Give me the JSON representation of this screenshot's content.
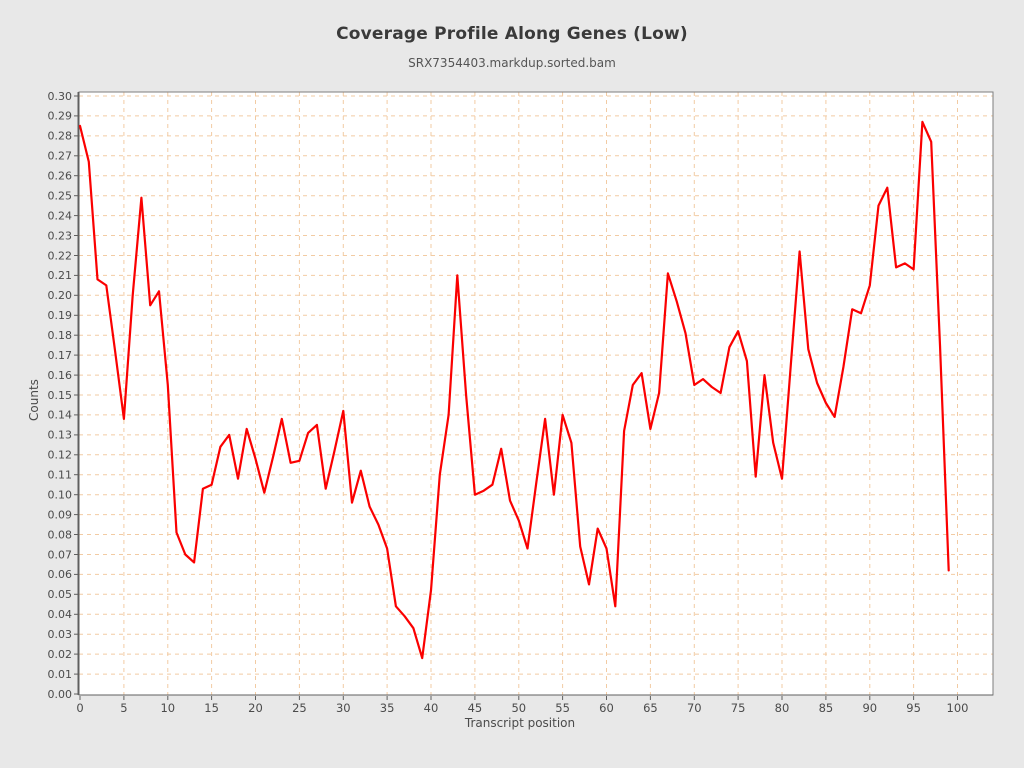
{
  "title": "Coverage Profile Along Genes (Low)",
  "subtitle": "SRX7354403.markdup.sorted.bam",
  "chart_data": {
    "type": "line",
    "title": "Coverage Profile Along Genes (Low)",
    "subtitle": "SRX7354403.markdup.sorted.bam",
    "xlabel": "Transcript position",
    "ylabel": "Counts",
    "series_name": "SRX7354403.markdup.sorted.bam",
    "x_start": 0,
    "x_step": 1,
    "values": [
      0.285,
      0.267,
      0.208,
      0.205,
      0.172,
      0.138,
      0.2,
      0.249,
      0.195,
      0.202,
      0.155,
      0.081,
      0.07,
      0.066,
      0.103,
      0.105,
      0.124,
      0.13,
      0.108,
      0.133,
      0.118,
      0.101,
      0.119,
      0.138,
      0.116,
      0.117,
      0.131,
      0.135,
      0.103,
      0.122,
      0.142,
      0.096,
      0.112,
      0.094,
      0.085,
      0.073,
      0.044,
      0.039,
      0.033,
      0.018,
      0.052,
      0.11,
      0.14,
      0.21,
      0.15,
      0.1,
      0.102,
      0.105,
      0.123,
      0.097,
      0.087,
      0.073,
      0.106,
      0.138,
      0.1,
      0.14,
      0.126,
      0.074,
      0.055,
      0.083,
      0.073,
      0.044,
      0.132,
      0.155,
      0.161,
      0.133,
      0.151,
      0.211,
      0.197,
      0.181,
      0.155,
      0.158,
      0.154,
      0.151,
      0.174,
      0.182,
      0.167,
      0.109,
      0.16,
      0.126,
      0.108,
      0.165,
      0.222,
      0.173,
      0.156,
      0.146,
      0.139,
      0.164,
      0.193,
      0.191,
      0.205,
      0.245,
      0.254,
      0.214,
      0.216,
      0.213,
      0.287,
      0.277,
      0.175,
      0.062
    ],
    "xlim": [
      0,
      104
    ],
    "ylim": [
      0,
      0.3
    ],
    "x_ticks": [
      0,
      5,
      10,
      15,
      20,
      25,
      30,
      35,
      40,
      45,
      50,
      55,
      60,
      65,
      70,
      75,
      80,
      85,
      90,
      95,
      100
    ],
    "y_ticks": [
      "0.00",
      "0.01",
      "0.02",
      "0.03",
      "0.04",
      "0.05",
      "0.06",
      "0.07",
      "0.08",
      "0.09",
      "0.10",
      "0.11",
      "0.12",
      "0.13",
      "0.14",
      "0.15",
      "0.16",
      "0.17",
      "0.18",
      "0.19",
      "0.20",
      "0.21",
      "0.22",
      "0.23",
      "0.24",
      "0.25",
      "0.26",
      "0.27",
      "0.28",
      "0.29",
      "0.30"
    ],
    "grid": true,
    "legend_position": "none",
    "line_color": "#fb0000",
    "grid_color": "#f2cba3",
    "frame_color": "#7e7e7e",
    "axis_color": "#5f5f5f",
    "background": "#e8e8e8",
    "plot_background": "#ffffff"
  }
}
